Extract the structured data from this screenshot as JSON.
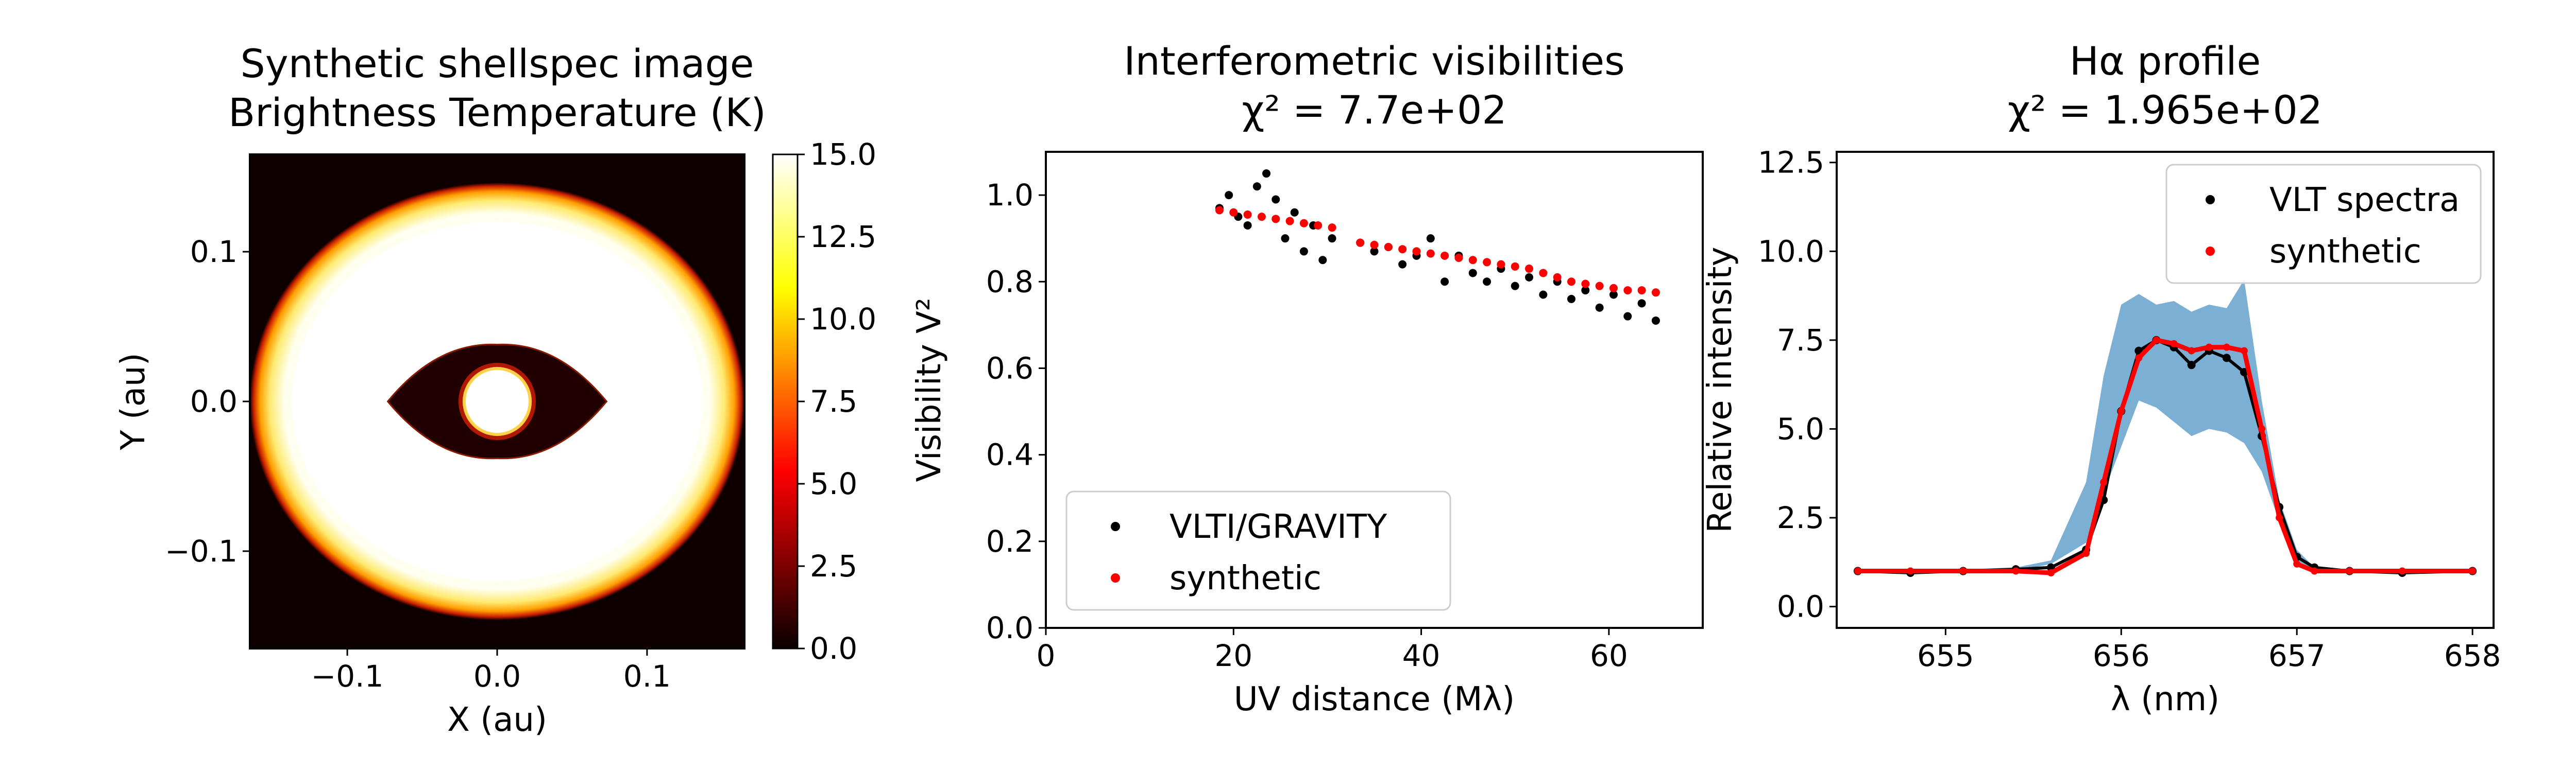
{
  "chart_data": [
    {
      "type": "heatmap",
      "title": [
        "Synthetic shellspec image",
        "Brightness Temperature (K)"
      ],
      "xlabel": "X (au)",
      "ylabel": "Y (au)",
      "xlim": [
        -0.165,
        0.165
      ],
      "ylim": [
        -0.165,
        0.165
      ],
      "xticks": [
        -0.1,
        0.0,
        0.1
      ],
      "xtick_labels": [
        "−0.1",
        "0.0",
        "0.1"
      ],
      "yticks": [
        -0.1,
        0.0,
        0.1
      ],
      "ytick_labels": [
        "−0.1",
        "0.0",
        "0.1"
      ],
      "colormap": "hot",
      "colorbar": {
        "range": [
          0,
          15
        ],
        "ticks": [
          0,
          2.5,
          5,
          7.5,
          10,
          12.5,
          15
        ],
        "tick_labels": [
          "0.0",
          "2.5",
          "5.0",
          "7.5",
          "10.0",
          "12.5",
          "15.0"
        ]
      },
      "features": {
        "background_value": 0,
        "ring": {
          "outer_semi_axes": [
            0.165,
            0.146
          ],
          "inner_semi_axes": [
            0.137,
            0.12
          ],
          "value": 15
        },
        "lens_cutout": {
          "half_width": 0.073,
          "half_height": 0.038,
          "value": 0
        },
        "central_star": {
          "radius": 0.021,
          "value": 15
        }
      }
    },
    {
      "type": "scatter",
      "title": [
        "Interferometric visibilities",
        "χ² = 7.7e+02"
      ],
      "xlabel": "UV distance (Mλ)",
      "ylabel": "Visibility V²",
      "xlim": [
        0,
        70
      ],
      "ylim": [
        0,
        1.1
      ],
      "xticks": [
        0,
        20,
        40,
        60
      ],
      "xtick_labels": [
        "0",
        "20",
        "40",
        "60"
      ],
      "yticks": [
        0,
        0.2,
        0.4,
        0.6,
        0.8,
        1.0
      ],
      "ytick_labels": [
        "0.0",
        "0.2",
        "0.4",
        "0.6",
        "0.8",
        "1.0"
      ],
      "legend_position": "lower-left",
      "series": [
        {
          "name": "VLTI/GRAVITY",
          "color": "#000000",
          "x": [
            18.5,
            19.5,
            20.5,
            21.5,
            22.5,
            23.5,
            24.5,
            25.5,
            26.5,
            27.5,
            28.5,
            29.5,
            30.5,
            33.5,
            35.0,
            36.5,
            38.0,
            39.5,
            41.0,
            42.5,
            44.0,
            45.5,
            47.0,
            48.5,
            50.0,
            51.5,
            53.0,
            54.5,
            56.0,
            57.5,
            59.0,
            60.5,
            62.0,
            63.5,
            65.0
          ],
          "y": [
            0.97,
            1.0,
            0.95,
            0.93,
            1.02,
            1.05,
            0.99,
            0.9,
            0.96,
            0.87,
            0.93,
            0.85,
            0.9,
            0.89,
            0.87,
            0.88,
            0.84,
            0.86,
            0.9,
            0.8,
            0.86,
            0.82,
            0.8,
            0.83,
            0.79,
            0.81,
            0.77,
            0.8,
            0.76,
            0.78,
            0.74,
            0.77,
            0.72,
            0.75,
            0.71
          ]
        },
        {
          "name": "synthetic",
          "color": "#ff0000",
          "x": [
            18.5,
            20.0,
            21.5,
            23.0,
            24.5,
            26.0,
            27.5,
            29.0,
            30.5,
            33.5,
            35.0,
            36.5,
            38.0,
            39.5,
            41.0,
            42.5,
            44.0,
            45.5,
            47.0,
            48.5,
            50.0,
            51.5,
            53.0,
            54.5,
            56.0,
            57.5,
            59.0,
            60.5,
            62.0,
            63.5,
            65.0
          ],
          "y": [
            0.965,
            0.96,
            0.955,
            0.95,
            0.945,
            0.94,
            0.935,
            0.93,
            0.925,
            0.89,
            0.885,
            0.88,
            0.875,
            0.87,
            0.865,
            0.86,
            0.855,
            0.85,
            0.845,
            0.84,
            0.835,
            0.83,
            0.82,
            0.81,
            0.8,
            0.795,
            0.79,
            0.785,
            0.78,
            0.78,
            0.775
          ]
        }
      ]
    },
    {
      "type": "line",
      "title": [
        "Hα profile",
        "χ² = 1.965e+02"
      ],
      "xlabel": "λ (nm)",
      "ylabel": "Relative intensity",
      "xlim": [
        654.38,
        658.12
      ],
      "ylim": [
        -0.6,
        12.8
      ],
      "xticks": [
        655,
        656,
        657,
        658
      ],
      "xtick_labels": [
        "655",
        "656",
        "657",
        "658"
      ],
      "yticks": [
        0,
        2.5,
        5,
        7.5,
        10,
        12.5
      ],
      "ytick_labels": [
        "0.0",
        "2.5",
        "5.0",
        "7.5",
        "10.0",
        "12.5"
      ],
      "legend_position": "top-right",
      "x": [
        654.5,
        654.8,
        655.1,
        655.4,
        655.6,
        655.8,
        655.9,
        656.0,
        656.1,
        656.2,
        656.3,
        656.4,
        656.5,
        656.6,
        656.7,
        656.8,
        656.9,
        657.0,
        657.1,
        657.3,
        657.6,
        658.0
      ],
      "series": [
        {
          "name": "VLT spectra",
          "color": "#000000",
          "y": [
            1.0,
            0.95,
            1.0,
            1.05,
            1.1,
            1.6,
            3.0,
            5.5,
            7.2,
            7.5,
            7.3,
            6.8,
            7.2,
            7.0,
            6.6,
            4.8,
            2.8,
            1.4,
            1.1,
            1.0,
            0.95,
            1.0
          ]
        },
        {
          "name": "synthetic",
          "color": "#ff0000",
          "y": [
            1.0,
            1.0,
            1.0,
            1.0,
            0.95,
            1.5,
            3.5,
            5.5,
            7.0,
            7.5,
            7.4,
            7.2,
            7.3,
            7.3,
            7.2,
            5.0,
            2.5,
            1.2,
            1.0,
            1.0,
            1.0,
            1.0
          ]
        }
      ],
      "uncertainty_band": {
        "color": "#7bafd4",
        "lower": [
          1.0,
          0.95,
          1.0,
          1.0,
          1.2,
          1.8,
          3.2,
          4.5,
          5.8,
          5.6,
          5.2,
          4.8,
          5.0,
          4.9,
          4.6,
          3.8,
          2.4,
          1.2,
          1.0,
          1.0,
          0.95,
          1.0
        ],
        "upper": [
          1.05,
          1.05,
          1.05,
          1.1,
          1.3,
          3.5,
          6.5,
          8.5,
          8.8,
          8.5,
          8.6,
          8.3,
          8.5,
          8.4,
          9.2,
          5.8,
          3.0,
          1.6,
          1.1,
          1.05,
          1.05,
          1.05
        ]
      }
    }
  ]
}
